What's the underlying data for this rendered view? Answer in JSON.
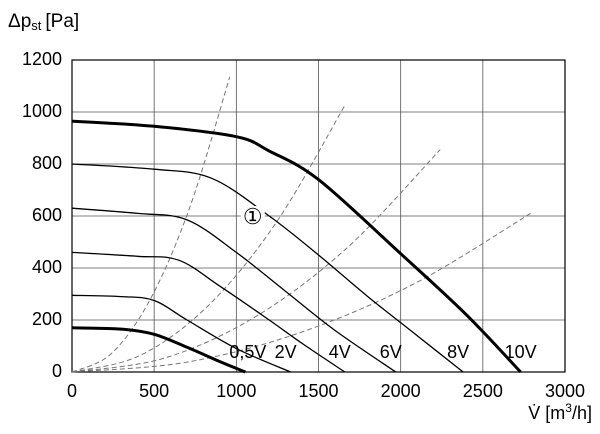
{
  "chart_data": {
    "type": "line",
    "y_label": {
      "main": "Δp",
      "sub": "st",
      "unit": "[Pa]"
    },
    "x_label": {
      "main": "V̇ [m",
      "sup": "3",
      "unit": "/h]"
    },
    "xlim": [
      0,
      3000
    ],
    "ylim": [
      0,
      1200
    ],
    "xticks": [
      0,
      500,
      1000,
      1500,
      2000,
      2500,
      3000
    ],
    "yticks": [
      0,
      200,
      400,
      600,
      800,
      1000,
      1200
    ],
    "grid": true,
    "series": [
      {
        "name": "0,5V",
        "color": "#000000",
        "style": "thick",
        "x": [
          0,
          300,
          500,
          700,
          900,
          1055
        ],
        "values": [
          170,
          165,
          145,
          95,
          40,
          0
        ]
      },
      {
        "name": "2V",
        "color": "#000000",
        "style": "thin",
        "x": [
          0,
          300,
          500,
          700,
          1000,
          1330
        ],
        "values": [
          295,
          290,
          275,
          200,
          90,
          0
        ]
      },
      {
        "name": "4V",
        "color": "#000000",
        "style": "thin",
        "x": [
          0,
          400,
          650,
          900,
          1200,
          1400,
          1660
        ],
        "values": [
          460,
          445,
          430,
          330,
          200,
          110,
          0
        ]
      },
      {
        "name": "6V",
        "color": "#000000",
        "style": "thin",
        "x": [
          0,
          400,
          700,
          1000,
          1300,
          1600,
          1970
        ],
        "values": [
          630,
          610,
          585,
          460,
          310,
          160,
          0
        ]
      },
      {
        "name": "8V",
        "color": "#000000",
        "style": "thin",
        "x": [
          0,
          500,
          850,
          1200,
          1500,
          1800,
          2100,
          2380
        ],
        "values": [
          800,
          780,
          745,
          600,
          450,
          290,
          140,
          0
        ]
      },
      {
        "name": "10V",
        "color": "#000000",
        "style": "thick",
        "x": [
          0,
          500,
          1000,
          1200,
          1500,
          2000,
          2400,
          2730
        ],
        "values": [
          965,
          945,
          905,
          850,
          740,
          455,
          220,
          0
        ]
      }
    ],
    "system_curves": [
      {
        "color": "#777777",
        "x": [
          0,
          240,
          480,
          720,
          960
        ],
        "values": [
          0,
          71,
          284,
          639,
          1135
        ]
      },
      {
        "color": "#777777",
        "x": [
          0,
          415,
          830,
          1245,
          1660
        ],
        "values": [
          0,
          64,
          256,
          577,
          1025
        ]
      },
      {
        "color": "#777777",
        "x": [
          0,
          560,
          1120,
          1680,
          2240
        ],
        "values": [
          0,
          53,
          214,
          481,
          855
        ]
      },
      {
        "color": "#777777",
        "x": [
          0,
          700,
          1395,
          2090,
          2790
        ],
        "values": [
          0,
          38,
          153,
          342,
          610
        ]
      }
    ],
    "annotation": {
      "text": "①",
      "x": 1100,
      "y": 592
    }
  }
}
